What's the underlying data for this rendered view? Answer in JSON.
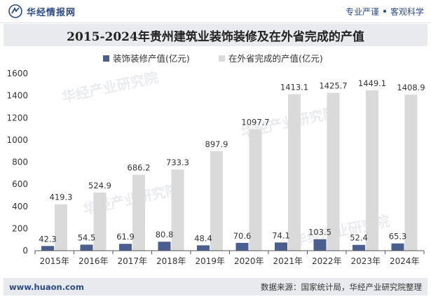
{
  "header": {
    "brand_name": "华经情报网",
    "slogan_left": "专业严谨",
    "slogan_right": "客观科学"
  },
  "footer": {
    "url": "www.huaon.com",
    "source": "数据来源：国家统计局，华经产业研究院整理"
  },
  "watermark": {
    "text": "华经产业研究院"
  },
  "colors": {
    "series1": "#4a5f8f",
    "series2": "#dadada",
    "title_bg": "#e9eaed",
    "brand": "#2a4a85"
  },
  "chart_data": {
    "type": "bar",
    "title": "2015-2024年贵州建筑业装饰装修及在外省完成的产值",
    "categories": [
      "2015年",
      "2016年",
      "2017年",
      "2018年",
      "2019年",
      "2020年",
      "2021年",
      "2022年",
      "2023年",
      "2024年"
    ],
    "series": [
      {
        "name": "装饰装修产值(亿元)",
        "values": [
          42.3,
          54.5,
          61.9,
          80.8,
          48.4,
          70.6,
          74.1,
          103.5,
          52.4,
          65.3
        ]
      },
      {
        "name": "在外省完成的产值(亿元)",
        "values": [
          419.3,
          524.9,
          686.2,
          733.3,
          897.9,
          1097.7,
          1413.1,
          1425.7,
          1449.1,
          1408.9
        ]
      }
    ],
    "yticks": [
      "0",
      "200",
      "400",
      "600",
      "800",
      "1000",
      "1200",
      "1400",
      "1600"
    ],
    "ylim": [
      0,
      1600
    ],
    "legend_position": "top-center",
    "grid": false
  }
}
